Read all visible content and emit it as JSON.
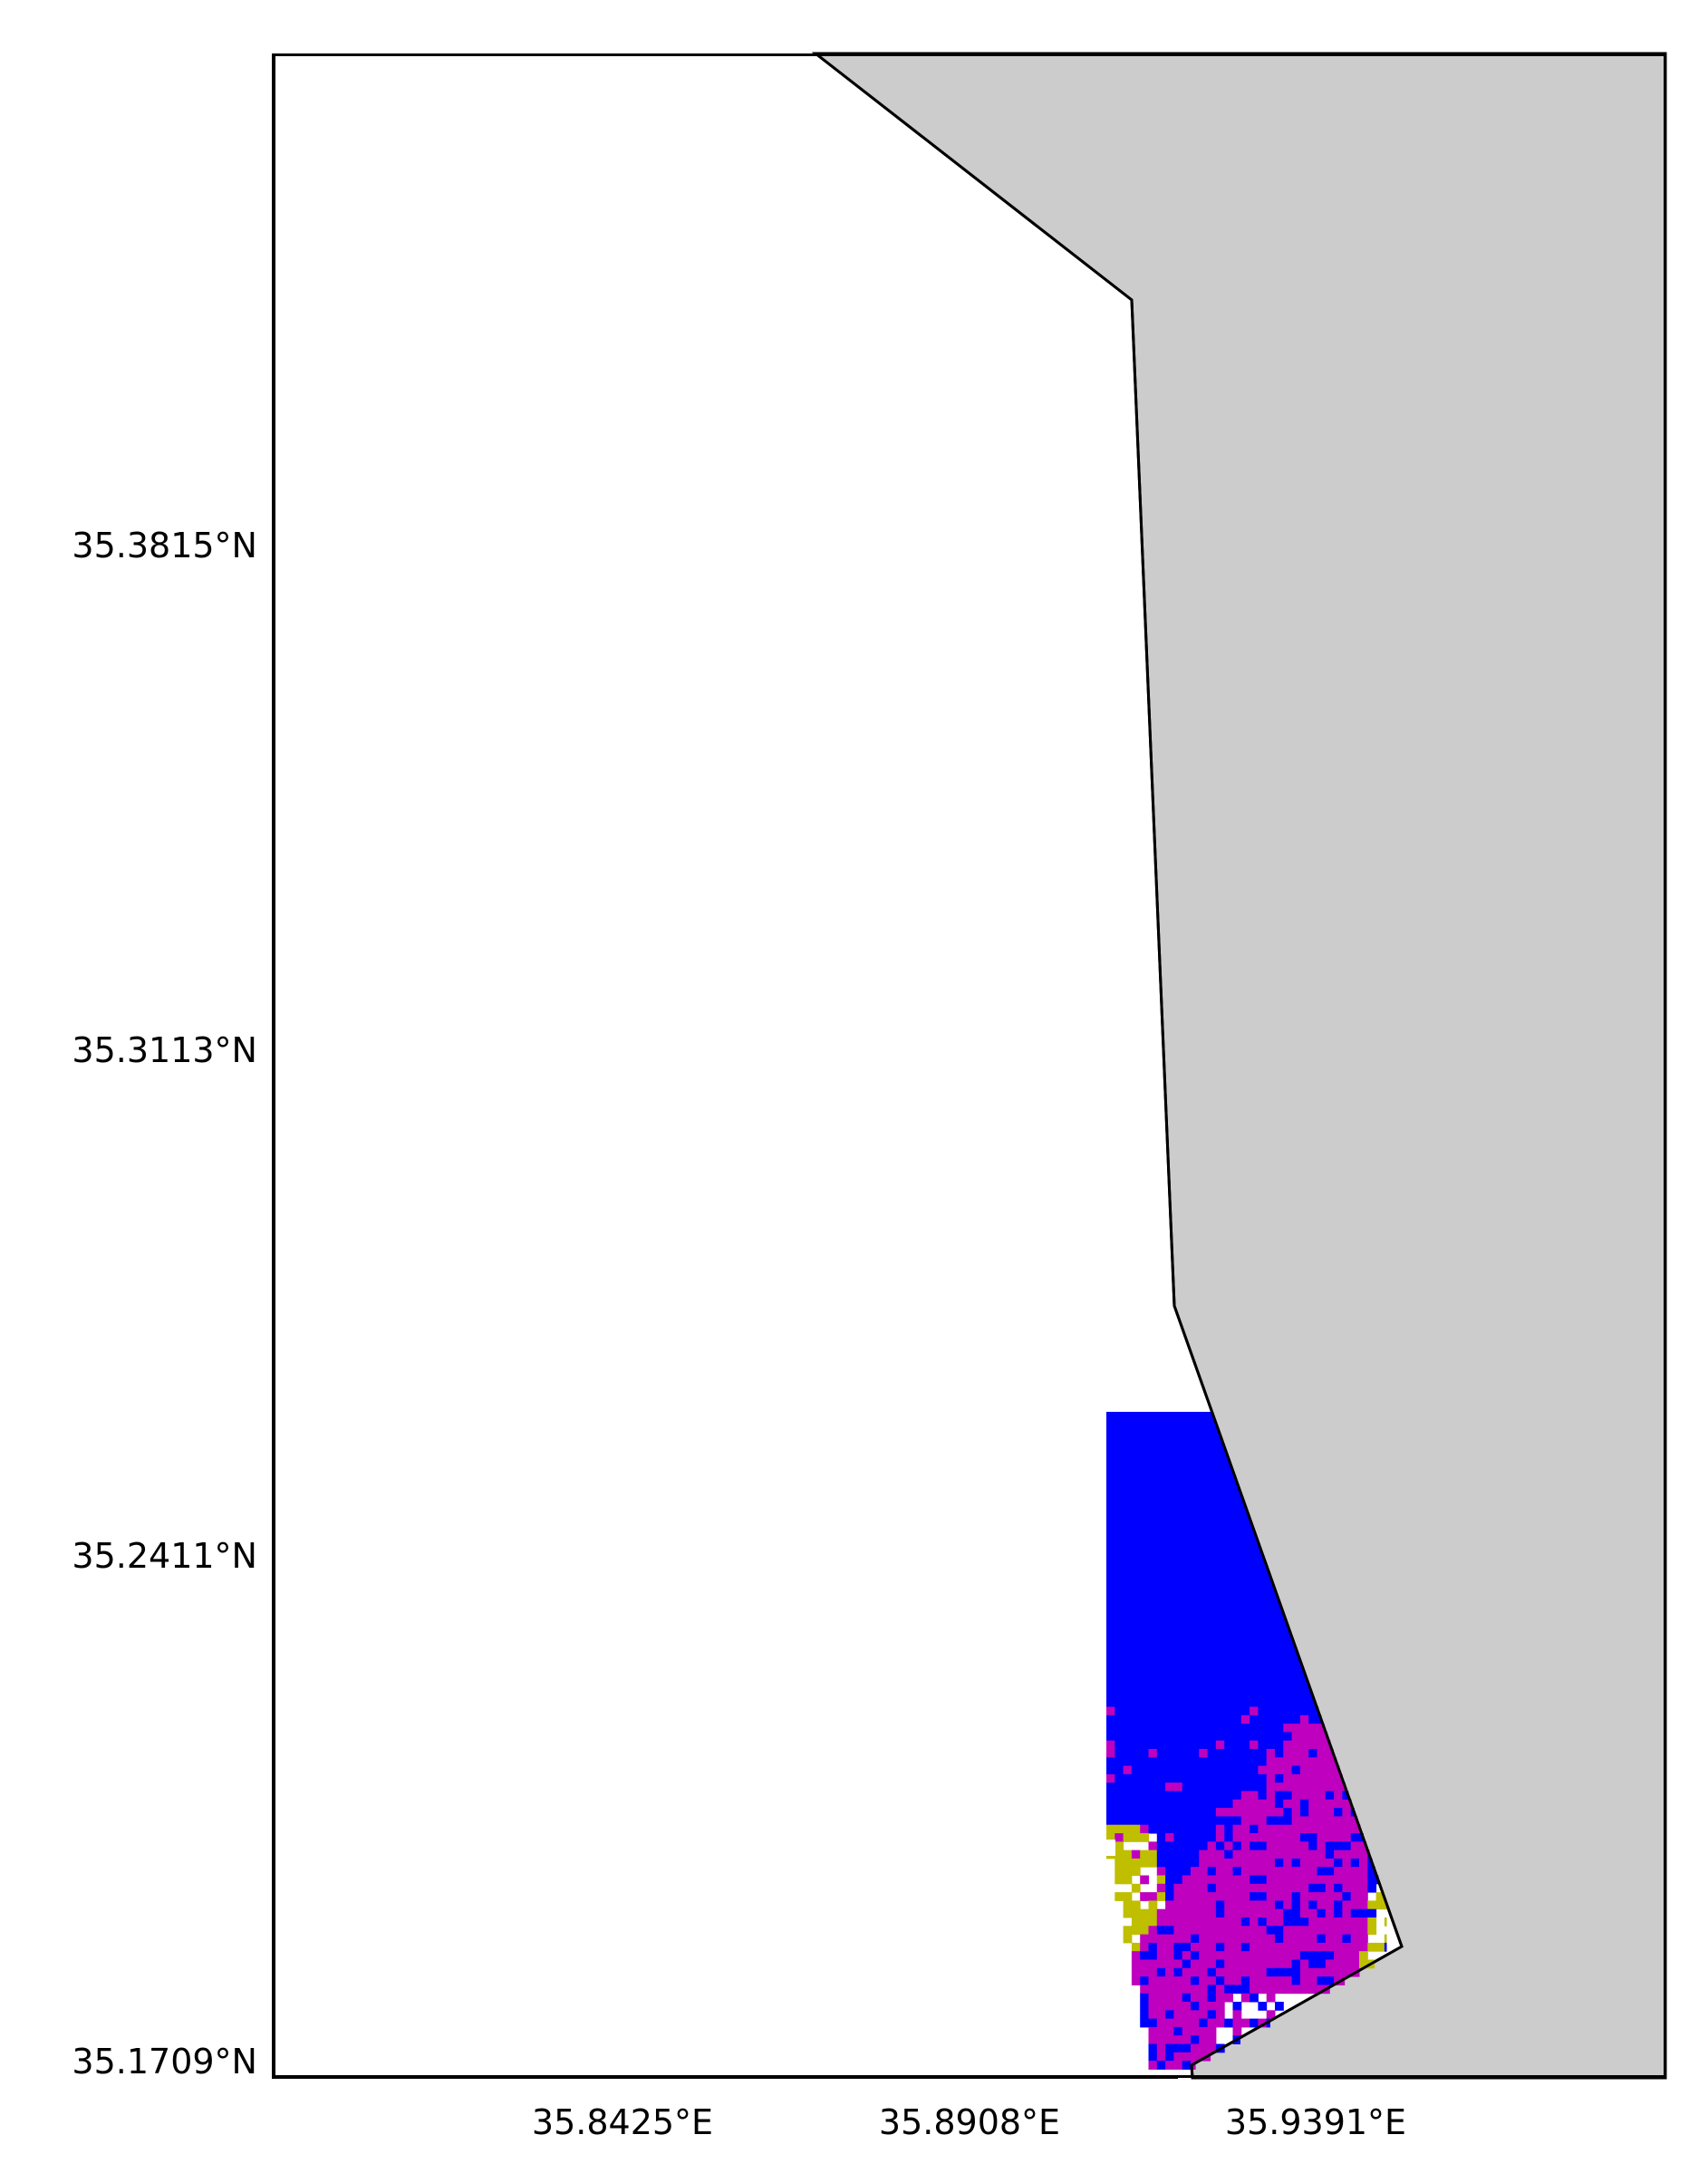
{
  "map": {
    "colors": {
      "land": "#cccccc",
      "sea": "#ffffff",
      "outline": "#000000",
      "class_blue": "#0000ff",
      "class_magenta": "#bf00bf",
      "class_olive": "#bfbf00"
    },
    "y_tick_labels": [
      "35.3815°N",
      "35.3113°N",
      "35.2411°N",
      "35.1709°N"
    ],
    "x_tick_labels": [
      "35.8425°E",
      "35.8908°E",
      "35.9391°E"
    ]
  }
}
